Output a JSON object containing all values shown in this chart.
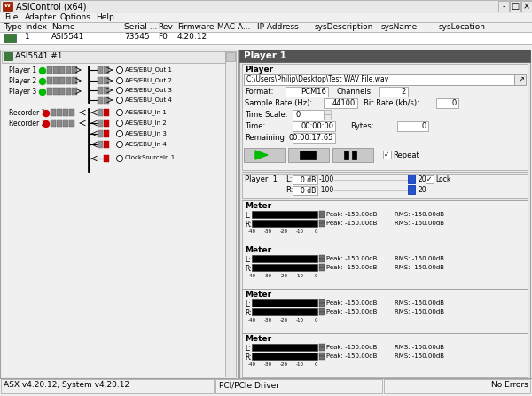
{
  "title": "ASIControl (x64)",
  "table_headers": [
    [
      "Type",
      4
    ],
    [
      "Index",
      28
    ],
    [
      "Name",
      58
    ],
    [
      "Serial ...",
      140
    ],
    [
      "Rev",
      178
    ],
    [
      "Firmware",
      200
    ],
    [
      "MAC A...",
      245
    ],
    [
      "IP Address",
      290
    ],
    [
      "sysDescription",
      355
    ],
    [
      "sysName",
      430
    ],
    [
      "sysLocation",
      495
    ]
  ],
  "device_name": "ASI5541 #1",
  "aes_out": [
    "AES/EBU_Out 1",
    "AES/EBU_Out 2",
    "AES/EBU_Out 3",
    "AES/EBU_Out 4"
  ],
  "aes_in": [
    "AES/EBU_In 1",
    "AES/EBU_In 2",
    "AES/EBU_In 3",
    "AES/EBU_In 4"
  ],
  "clock_source": "ClockSourceIn 1",
  "player_panel_title": "Player 1",
  "file_path": "C:\\Users\\Philip\\Desktop\\Test WAV File.wav",
  "format": "PCM16",
  "channels": "2",
  "sample_rate": "44100",
  "bit_rate": "0",
  "time_scale": "0",
  "time_val": "00:00:00",
  "bytes_val": "0",
  "remaining": "00:00:17.65",
  "status_left": "ASX v4.20.12, System v4.20.12",
  "status_middle": "PCI/PCle Driver",
  "status_right": "No Errors",
  "window_bg": "#f0f0f0",
  "white": "#ffffff",
  "black": "#000000",
  "green": "#00bb00",
  "red": "#cc0000",
  "blue": "#2255cc",
  "dark_header": "#545454",
  "mid_gray": "#c8c8c8",
  "light_gray": "#e8e8e8",
  "border": "#a0a0a0"
}
